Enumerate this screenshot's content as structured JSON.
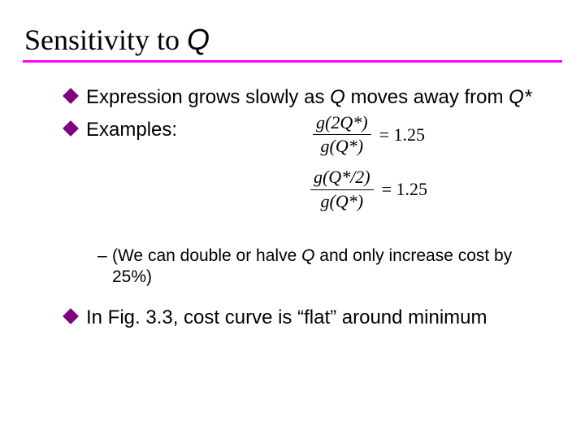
{
  "colors": {
    "rule": "#ff00ff",
    "diamond": "#800080",
    "text": "#000000",
    "background": "#ffffff"
  },
  "title": {
    "prefix": "Sensitivity to ",
    "Q": "Q"
  },
  "bullets": {
    "b1_pre": "Expression grows slowly as ",
    "b1_Q": "Q",
    "b1_mid": " moves away from ",
    "b1_Qstar": "Q*",
    "b2_label": "Examples:",
    "b3_pre": "In Fig. 3.3, cost curve is “flat” around minimum"
  },
  "fractions": {
    "f1_num": "g(2Q*)",
    "f1_den": "g(Q*)",
    "f1_val": "= 1.25",
    "f2_num": "g(Q*/2)",
    "f2_den": "g(Q*)",
    "f2_val": "= 1.25"
  },
  "sub": {
    "dash": "–",
    "text_pre": " (We can double or halve ",
    "text_Q": "Q",
    "text_post": " and only increase cost by 25%)"
  }
}
